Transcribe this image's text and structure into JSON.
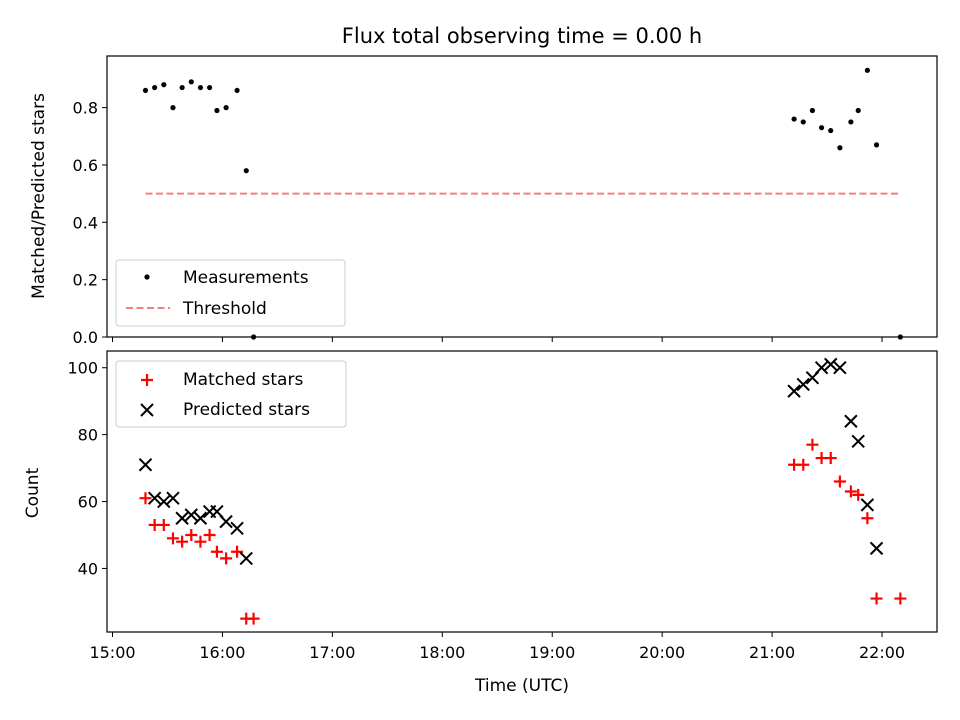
{
  "chart_data": [
    {
      "type": "scatter",
      "title": "Flux total observing time = 0.00 h",
      "xlabel": "",
      "ylabel": "Matched/Predicted stars",
      "ylim": [
        0,
        0.98
      ],
      "yticks": [
        "0.0",
        "0.2",
        "0.4",
        "0.6",
        "0.8"
      ],
      "grid": false,
      "legend_position": "lower-left",
      "series": [
        {
          "name": "Measurements",
          "marker": "dot",
          "color": "#000000",
          "points": [
            [
              "15:18",
              0.86
            ],
            [
              "15:23",
              0.87
            ],
            [
              "15:28",
              0.88
            ],
            [
              "15:33",
              0.8
            ],
            [
              "15:38",
              0.87
            ],
            [
              "15:43",
              0.89
            ],
            [
              "15:48",
              0.87
            ],
            [
              "15:53",
              0.87
            ],
            [
              "15:57",
              0.79
            ],
            [
              "16:02",
              0.8
            ],
            [
              "16:08",
              0.86
            ],
            [
              "16:13",
              0.58
            ],
            [
              "16:17",
              0.0
            ],
            [
              "21:12",
              0.76
            ],
            [
              "21:17",
              0.75
            ],
            [
              "21:22",
              0.79
            ],
            [
              "21:27",
              0.73
            ],
            [
              "21:32",
              0.72
            ],
            [
              "21:37",
              0.66
            ],
            [
              "21:43",
              0.75
            ],
            [
              "21:47",
              0.79
            ],
            [
              "21:52",
              0.93
            ],
            [
              "21:57",
              0.67
            ],
            [
              "22:10",
              0.0
            ]
          ]
        },
        {
          "name": "Threshold",
          "marker": "dashed-line",
          "color": "#f08080",
          "points": [
            [
              "15:18",
              0.5
            ],
            [
              "22:10",
              0.5
            ]
          ]
        }
      ]
    },
    {
      "type": "scatter",
      "title": "",
      "xlabel": "Time (UTC)",
      "ylabel": "Count",
      "ylim": [
        21,
        105
      ],
      "yticks": [
        "40",
        "60",
        "80",
        "100"
      ],
      "xlim": [
        "14:57",
        "22:30"
      ],
      "xticks": [
        "15:00",
        "16:00",
        "17:00",
        "18:00",
        "19:00",
        "20:00",
        "21:00",
        "22:00"
      ],
      "grid": false,
      "legend_position": "upper-left",
      "series": [
        {
          "name": "Matched stars",
          "marker": "plus",
          "color": "#ff0000",
          "points": [
            [
              "15:18",
              61
            ],
            [
              "15:23",
              53
            ],
            [
              "15:28",
              53
            ],
            [
              "15:33",
              49
            ],
            [
              "15:38",
              48
            ],
            [
              "15:43",
              50
            ],
            [
              "15:48",
              48
            ],
            [
              "15:53",
              50
            ],
            [
              "15:57",
              45
            ],
            [
              "16:02",
              43
            ],
            [
              "16:08",
              45
            ],
            [
              "16:13",
              25
            ],
            [
              "16:17",
              25
            ],
            [
              "21:12",
              71
            ],
            [
              "21:17",
              71
            ],
            [
              "21:22",
              77
            ],
            [
              "21:27",
              73
            ],
            [
              "21:32",
              73
            ],
            [
              "21:37",
              66
            ],
            [
              "21:43",
              63
            ],
            [
              "21:47",
              62
            ],
            [
              "21:52",
              55
            ],
            [
              "21:57",
              31
            ],
            [
              "22:10",
              31
            ]
          ]
        },
        {
          "name": "Predicted stars",
          "marker": "x",
          "color": "#000000",
          "points": [
            [
              "15:18",
              71
            ],
            [
              "15:23",
              61
            ],
            [
              "15:28",
              60
            ],
            [
              "15:33",
              61
            ],
            [
              "15:38",
              55
            ],
            [
              "15:43",
              56
            ],
            [
              "15:48",
              55
            ],
            [
              "15:53",
              57
            ],
            [
              "15:57",
              57
            ],
            [
              "16:02",
              54
            ],
            [
              "16:08",
              52
            ],
            [
              "16:13",
              43
            ],
            [
              "21:12",
              93
            ],
            [
              "21:17",
              95
            ],
            [
              "21:22",
              97
            ],
            [
              "21:27",
              100
            ],
            [
              "21:32",
              101
            ],
            [
              "21:37",
              100
            ],
            [
              "21:43",
              84
            ],
            [
              "21:47",
              78
            ],
            [
              "21:52",
              59
            ],
            [
              "21:57",
              46
            ]
          ]
        }
      ]
    }
  ]
}
